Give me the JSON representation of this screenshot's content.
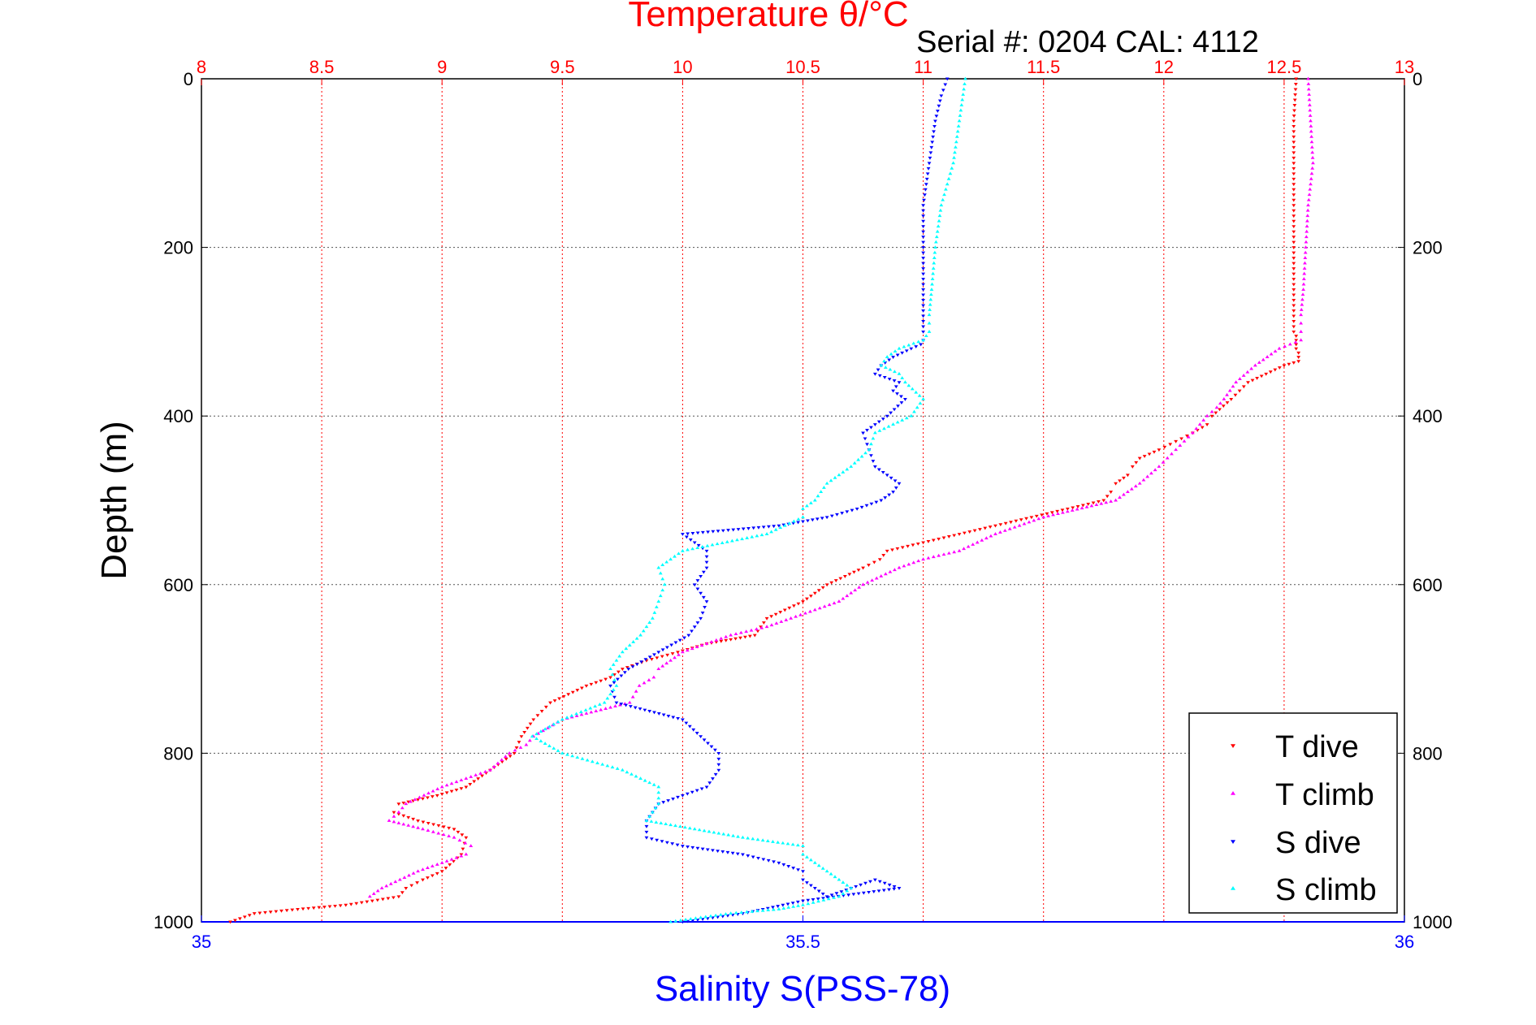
{
  "chart_data": {
    "type": "scatter",
    "title": "Temperature θ/°C",
    "subtitle": "Serial #: 0204  CAL: 4112",
    "ylabel": "Depth (m)",
    "xlabel_bottom": "Salinity S(PSS-78)",
    "x_top": {
      "label": "Temperature θ/°C",
      "range": [
        8,
        13
      ],
      "ticks": [
        "8",
        "8.5",
        "9",
        "9.5",
        "10",
        "10.5",
        "11",
        "11.5",
        "12",
        "12.5",
        "13"
      ]
    },
    "x_bottom": {
      "label": "Salinity S(PSS-78)",
      "range": [
        35,
        36
      ],
      "ticks": [
        "35",
        "35.5",
        "36"
      ]
    },
    "y": {
      "range": [
        0,
        1000
      ],
      "reversed": true,
      "ticks": [
        "0",
        "200",
        "400",
        "600",
        "800",
        "1000"
      ]
    },
    "grid": true,
    "legend_position": "bottom-right",
    "series": [
      {
        "name": "T dive",
        "axis": "temperature",
        "marker": "triangle-down",
        "color": "#ff0000",
        "x": [
          12.55,
          12.54,
          12.54,
          12.54,
          12.54,
          12.54,
          12.54,
          12.55,
          12.55,
          12.55,
          12.55,
          12.56,
          12.56,
          12.56,
          12.5,
          12.35,
          12.28,
          12.2,
          12.18,
          12.12,
          12.05,
          11.98,
          11.9,
          11.87,
          11.85,
          11.8,
          11.78,
          11.75,
          11.6,
          11.45,
          11.3,
          11.15,
          11.0,
          10.85,
          10.82,
          10.75,
          10.6,
          10.5,
          10.35,
          10.3,
          10.1,
          9.98,
          9.85,
          9.75,
          9.7,
          9.6,
          9.45,
          9.38,
          9.33,
          9.3,
          9.2,
          9.1,
          8.98,
          8.82,
          8.8,
          8.9,
          9.05,
          9.1,
          9.08,
          9.0,
          8.92,
          8.85,
          8.82,
          8.6,
          8.4,
          8.22,
          8.12
        ],
        "y": [
          0,
          50,
          100,
          150,
          200,
          250,
          300,
          305,
          310,
          315,
          320,
          325,
          330,
          335,
          340,
          360,
          380,
          400,
          410,
          420,
          430,
          440,
          450,
          460,
          470,
          480,
          490,
          500,
          510,
          520,
          530,
          540,
          550,
          560,
          570,
          580,
          600,
          620,
          640,
          660,
          670,
          680,
          690,
          700,
          710,
          720,
          740,
          760,
          780,
          800,
          820,
          840,
          850,
          860,
          870,
          880,
          890,
          900,
          920,
          940,
          950,
          960,
          970,
          980,
          985,
          990,
          1000
        ]
      },
      {
        "name": "T climb",
        "axis": "temperature",
        "marker": "triangle-up",
        "color": "#ff00ff",
        "x": [
          12.6,
          12.61,
          12.62,
          12.6,
          12.59,
          12.58,
          12.57,
          12.57,
          12.57,
          12.57,
          12.48,
          12.38,
          12.3,
          12.25,
          12.22,
          12.18,
          12.12,
          12.05,
          11.98,
          11.9,
          11.8,
          11.5,
          11.3,
          11.15,
          11.0,
          10.9,
          10.75,
          10.65,
          10.55,
          10.45,
          10.35,
          10.2,
          10.0,
          9.9,
          9.88,
          9.82,
          9.78,
          9.5,
          9.38,
          9.35,
          9.28,
          9.2,
          9.0,
          8.85,
          8.82,
          8.78,
          8.92,
          9.05,
          9.12,
          9.1,
          8.9,
          8.75,
          8.7
        ],
        "y": [
          0,
          50,
          100,
          150,
          200,
          250,
          280,
          290,
          300,
          310,
          320,
          340,
          360,
          380,
          390,
          400,
          420,
          440,
          460,
          480,
          500,
          520,
          540,
          560,
          570,
          580,
          600,
          620,
          630,
          640,
          650,
          660,
          680,
          700,
          710,
          720,
          740,
          760,
          780,
          790,
          800,
          820,
          840,
          860,
          870,
          880,
          890,
          900,
          910,
          920,
          940,
          960,
          970
        ]
      },
      {
        "name": "S dive",
        "axis": "salinity",
        "marker": "triangle-down",
        "color": "#0000ff",
        "x": [
          35.62,
          35.615,
          35.61,
          35.605,
          35.6,
          35.6,
          35.6,
          35.6,
          35.6,
          35.598,
          35.59,
          35.575,
          35.565,
          35.56,
          35.58,
          35.575,
          35.585,
          35.57,
          35.55,
          35.555,
          35.56,
          35.57,
          35.58,
          35.575,
          35.565,
          35.545,
          35.52,
          35.48,
          35.4,
          35.42,
          35.42,
          35.41,
          35.42,
          35.415,
          35.405,
          35.38,
          35.355,
          35.34,
          35.345,
          35.4,
          35.43,
          35.43,
          35.42,
          35.38,
          35.37,
          35.37,
          35.4,
          35.45,
          35.48,
          35.5,
          35.5,
          35.51,
          35.52,
          35.56,
          35.58,
          35.5,
          35.45,
          35.4
        ],
        "y": [
          0,
          20,
          50,
          100,
          150,
          200,
          250,
          300,
          310,
          315,
          320,
          330,
          340,
          350,
          360,
          370,
          380,
          400,
          420,
          440,
          460,
          470,
          480,
          490,
          500,
          510,
          520,
          530,
          540,
          560,
          580,
          600,
          620,
          640,
          660,
          680,
          700,
          720,
          740,
          760,
          800,
          820,
          840,
          860,
          880,
          900,
          910,
          920,
          930,
          940,
          950,
          960,
          970,
          950,
          960,
          975,
          990,
          1000
        ]
      },
      {
        "name": "S climb",
        "axis": "salinity",
        "marker": "triangle-up",
        "color": "#00ffff",
        "x": [
          35.635,
          35.63,
          35.625,
          35.615,
          35.61,
          35.607,
          35.605,
          35.605,
          35.605,
          35.6,
          35.58,
          35.57,
          35.565,
          35.58,
          35.585,
          35.6,
          35.59,
          35.56,
          35.555,
          35.54,
          35.52,
          35.51,
          35.5,
          35.5,
          35.47,
          35.4,
          35.38,
          35.385,
          35.38,
          35.375,
          35.365,
          35.35,
          35.34,
          35.345,
          35.335,
          35.3,
          35.275,
          35.3,
          35.35,
          35.38,
          35.38,
          35.37,
          35.41,
          35.45,
          35.5,
          35.5,
          35.51,
          35.52,
          35.53,
          35.54,
          35.53,
          35.5,
          35.48,
          35.44,
          35.39
        ],
        "y": [
          0,
          50,
          100,
          150,
          200,
          250,
          280,
          290,
          300,
          310,
          320,
          330,
          340,
          350,
          360,
          380,
          400,
          420,
          440,
          460,
          480,
          500,
          510,
          520,
          540,
          560,
          580,
          600,
          620,
          640,
          660,
          680,
          700,
          720,
          740,
          760,
          780,
          800,
          820,
          840,
          860,
          880,
          890,
          900,
          910,
          920,
          930,
          940,
          950,
          960,
          970,
          980,
          985,
          990,
          1000
        ]
      }
    ]
  }
}
